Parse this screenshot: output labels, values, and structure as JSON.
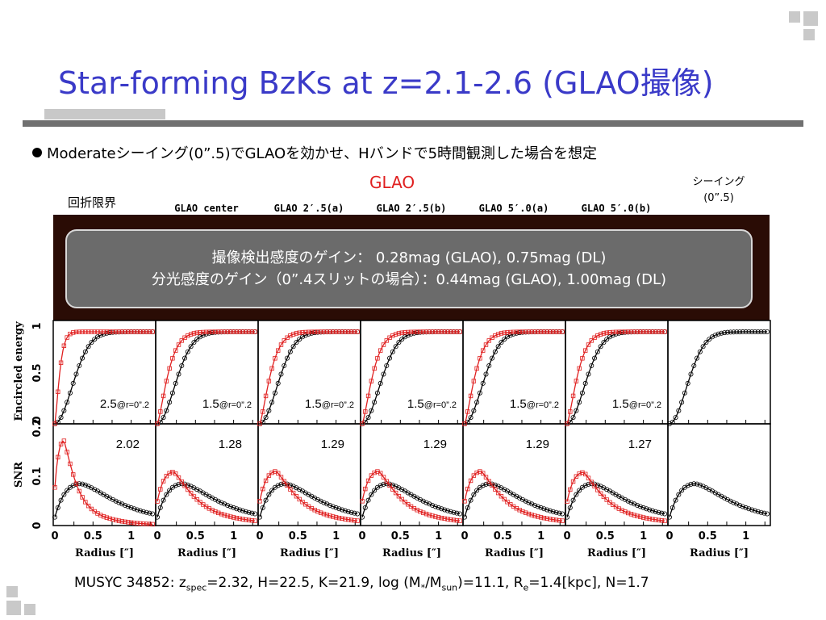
{
  "slide": {
    "title": "Star-forming BzKs at z=2.1-2.6 (GLAO撮像)",
    "bullet": "Moderateシーイング(0”.5)でGLAOを効かせ、Hバンドで5時間観測した場合を想定",
    "glao_label": "GLAO",
    "seeing_label_line1": "シーイング",
    "seeing_label_line2": "(0”.5)",
    "diffraction_label": "回折限界",
    "gain_line1": "撮像検出感度のゲイン：  0.28mag (GLAO), 0.75mag (DL)",
    "gain_line2": "分光感度のゲイン（0”.4スリットの場合）：0.44mag (GLAO), 1.00mag (DL)",
    "footer_prefix": "MUSYC 34852: z",
    "footer_sub1": "spec",
    "footer_mid": "=2.32, H=22.5, K=21.9, log (M",
    "footer_sub2": "*",
    "footer_mid2": "/M",
    "footer_sub3": "sun",
    "footer_mid3": ")=11.1, R",
    "footer_sub4": "e",
    "footer_suffix": "=1.4[kpc], N=1.7"
  },
  "colors": {
    "title": "#3a3ac8",
    "glao_red": "#e02020",
    "seeing_black": "#000000",
    "image_bg": "#2a0c05",
    "gain_box": "#6b6b6b"
  },
  "chart_data": {
    "type": "line",
    "x_label": "Radius [″]",
    "x_ticks": [
      "0",
      "0.5",
      "1"
    ],
    "x_range": [
      0,
      1.3
    ],
    "columns": [
      "",
      "GLAO center",
      "GLAO 2′.5(a)",
      "GLAO 2′.5(b)",
      "GLAO 5′.0(a)",
      "GLAO 5′.0(b)",
      ""
    ],
    "encircled_energy": {
      "ylabel": "Encircled energy",
      "y_ticks": [
        "0",
        "0.5",
        "1"
      ],
      "y_range": [
        0,
        1.0
      ],
      "gain_labels": [
        "2.5",
        "1.5",
        "1.5",
        "1.5",
        "1.5",
        "1.5",
        ""
      ],
      "gain_suffix": "@r=0”.2"
    },
    "snr": {
      "ylabel": "SNR",
      "y_ticks": [
        "0",
        "0.1",
        "0.2"
      ],
      "y_range": [
        0,
        0.2
      ],
      "ratio_labels": [
        "2.02",
        "1.28",
        "1.29",
        "1.29",
        "1.29",
        "1.27",
        ""
      ],
      "seeing_peak": 0.085,
      "seeing_peak_r": 0.34,
      "glao_peak": [
        0.172,
        0.109,
        0.11,
        0.11,
        0.11,
        0.108,
        null
      ],
      "glao_peak_r": [
        0.12,
        0.22,
        0.22,
        0.22,
        0.22,
        0.22,
        null
      ]
    },
    "series": [
      {
        "name": "GLAO",
        "color": "#e02020"
      },
      {
        "name": "シーイング(0”.5)",
        "color": "#000000"
      }
    ]
  }
}
